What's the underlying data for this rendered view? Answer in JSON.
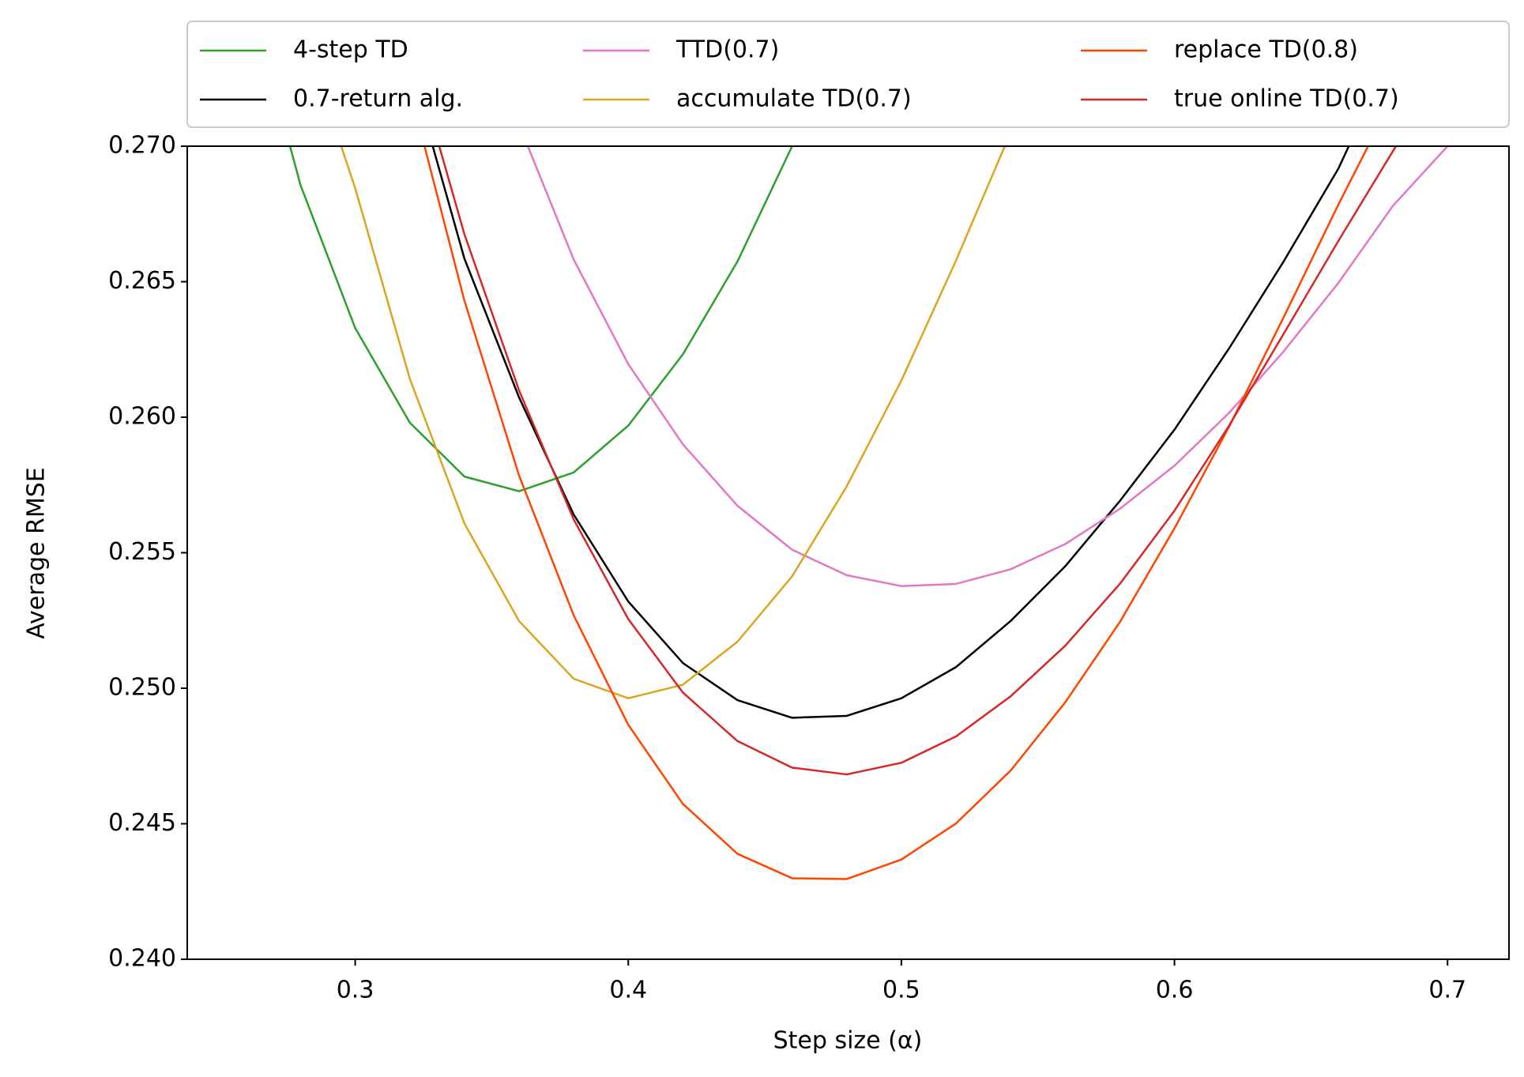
{
  "chart_data": {
    "type": "line",
    "x_label": "Step size (α)",
    "y_label": "Average RMSE",
    "x": [
      0.26,
      0.28,
      0.3,
      0.32,
      0.34,
      0.36,
      0.38,
      0.4,
      0.42,
      0.44,
      0.46,
      0.48,
      0.5,
      0.52,
      0.54,
      0.56,
      0.58,
      0.6,
      0.62,
      0.64,
      0.66,
      0.68,
      0.7
    ],
    "series": [
      {
        "name": "4-step TD",
        "color": "#2ca02c",
        "values": [
          0.276,
          0.26856,
          0.26329,
          0.2598,
          0.25781,
          0.25727,
          0.25796,
          0.25969,
          0.26232,
          0.26575,
          0.27,
          0.2745,
          null,
          null,
          null,
          null,
          null,
          null,
          null,
          null,
          null,
          null,
          null
        ]
      },
      {
        "name": "0.7-return alg.",
        "color": "#000000",
        "values": [
          null,
          null,
          null,
          0.273,
          0.26585,
          0.26073,
          0.25641,
          0.2532,
          0.25093,
          0.24956,
          0.24891,
          0.24898,
          0.24963,
          0.25078,
          0.25248,
          0.2545,
          0.25691,
          0.25954,
          0.26254,
          0.26575,
          0.26917,
          0.2735,
          null
        ]
      },
      {
        "name": "TTD(0.7)",
        "color": "#e377c2",
        "values": [
          null,
          null,
          null,
          null,
          null,
          0.2708,
          0.26582,
          0.26196,
          0.259,
          0.25673,
          0.25511,
          0.25417,
          0.25377,
          0.25385,
          0.25439,
          0.25532,
          0.25662,
          0.25821,
          0.26016,
          0.26243,
          0.26495,
          0.2678,
          0.27
        ]
      },
      {
        "name": "accumulate TD(0.7)",
        "color": "#daa520",
        "values": [
          null,
          0.2745,
          0.26845,
          0.26142,
          0.25608,
          0.25248,
          0.25035,
          0.24963,
          0.25013,
          0.25172,
          0.25413,
          0.25745,
          0.26135,
          0.26578,
          0.2705,
          null,
          null,
          null,
          null,
          null,
          null,
          null,
          null
        ]
      },
      {
        "name": "replace TD(0.8)",
        "color": "#ff4500",
        "values": [
          null,
          null,
          null,
          0.2721,
          0.2643,
          0.25785,
          0.25269,
          0.24865,
          0.24573,
          0.24389,
          0.24299,
          0.24296,
          0.24368,
          0.24501,
          0.24696,
          0.24948,
          0.25244,
          0.2559,
          0.25965,
          0.26369,
          0.26784,
          0.2718,
          null
        ]
      },
      {
        "name": "true online TD(0.7)",
        "color": "#d62728",
        "values": [
          null,
          null,
          null,
          0.2738,
          0.26675,
          0.26099,
          0.25623,
          0.25255,
          0.24984,
          0.24805,
          0.24707,
          0.24682,
          0.24725,
          0.24822,
          0.2497,
          0.25157,
          0.25385,
          0.25655,
          0.25969,
          0.26308,
          0.2665,
          0.26982,
          0.2731
        ]
      }
    ],
    "xlim": [
      0.2385,
      0.7225
    ],
    "ylim": [
      0.24,
      0.27
    ],
    "xticks": [
      0.3,
      0.4,
      0.5,
      0.6,
      0.7
    ],
    "yticks": [
      {
        "value": 0.24,
        "label": "0.240"
      },
      0.245,
      {
        "value": 0.25,
        "label": "0.250"
      },
      0.255,
      {
        "value": 0.26,
        "label": "0.260"
      },
      0.265,
      {
        "value": 0.27,
        "label": "0.270"
      }
    ],
    "legend": "top",
    "legend_columns": 3
  }
}
